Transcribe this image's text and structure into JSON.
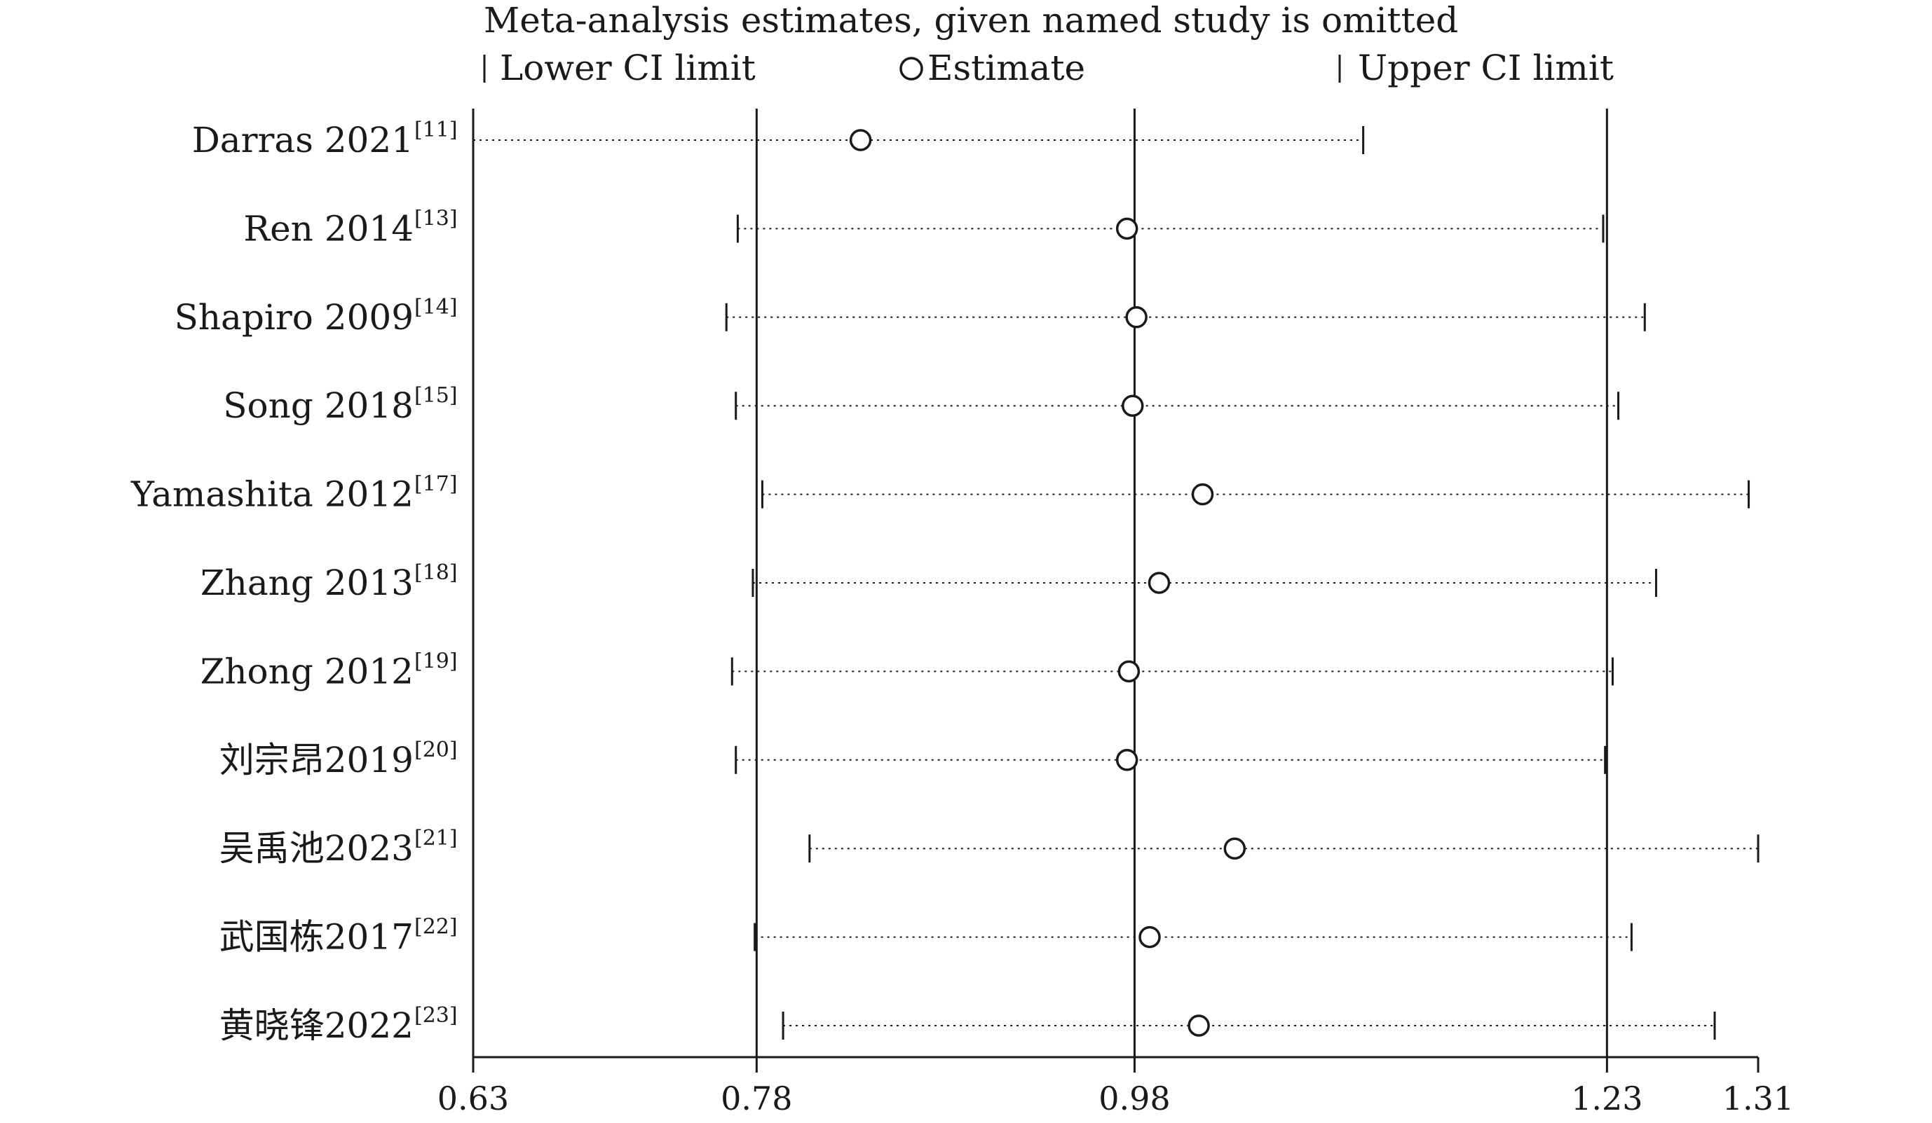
{
  "chart_data": {
    "type": "forest",
    "title": "Meta-analysis estimates, given named study is omitted",
    "legend": {
      "lower": "Lower CI limit",
      "estimate": "Estimate",
      "upper": "Upper CI limit"
    },
    "xlim": [
      0.63,
      1.31
    ],
    "x_ticks": [
      {
        "value": 0.63,
        "label": "0.63"
      },
      {
        "value": 0.78,
        "label": "0.78"
      },
      {
        "value": 0.98,
        "label": "0.98"
      },
      {
        "value": 1.23,
        "label": "1.23"
      },
      {
        "value": 1.31,
        "label": "1.31"
      }
    ],
    "reference_lines": [
      0.78,
      0.98,
      1.23
    ],
    "studies": [
      {
        "name": "Darras 2021",
        "ref": "[11]",
        "lower": 0.63,
        "estimate": 0.835,
        "upper": 1.101
      },
      {
        "name": "Ren 2014",
        "ref": "[13]",
        "lower": 0.77,
        "estimate": 0.976,
        "upper": 1.228
      },
      {
        "name": "Shapiro 2009",
        "ref": "[14]",
        "lower": 0.764,
        "estimate": 0.981,
        "upper": 1.25
      },
      {
        "name": "Song 2018",
        "ref": "[15]",
        "lower": 0.769,
        "estimate": 0.979,
        "upper": 1.236
      },
      {
        "name": "Yamashita 2012",
        "ref": "[17]",
        "lower": 0.783,
        "estimate": 1.016,
        "upper": 1.305
      },
      {
        "name": "Zhang 2013",
        "ref": "[18]",
        "lower": 0.778,
        "estimate": 0.993,
        "upper": 1.256
      },
      {
        "name": "Zhong 2012",
        "ref": "[19]",
        "lower": 0.767,
        "estimate": 0.977,
        "upper": 1.233
      },
      {
        "name": "刘宗昂2019",
        "ref": "[20]",
        "lower": 0.769,
        "estimate": 0.976,
        "upper": 1.229
      },
      {
        "name": "吴禹池2023",
        "ref": "[21]",
        "lower": 0.808,
        "estimate": 1.033,
        "upper": 1.31
      },
      {
        "name": "武国栋2017",
        "ref": "[22]",
        "lower": 0.779,
        "estimate": 0.988,
        "upper": 1.243
      },
      {
        "name": "黄晓锋2022",
        "ref": "[23]",
        "lower": 0.794,
        "estimate": 1.014,
        "upper": 1.287
      }
    ]
  }
}
